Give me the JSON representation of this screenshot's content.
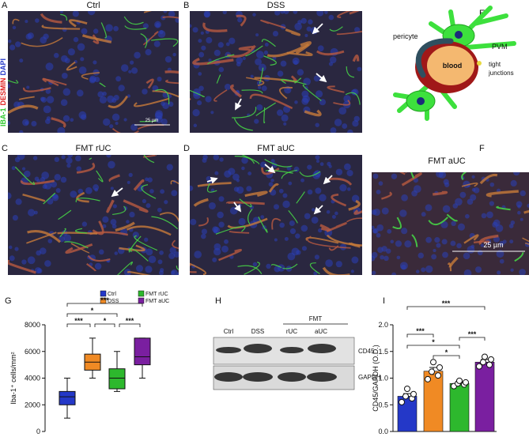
{
  "panels": {
    "a": {
      "letter": "A",
      "title": "Ctrl",
      "scale_bar": "25 µm"
    },
    "b": {
      "letter": "B",
      "title": "DSS"
    },
    "c": {
      "letter": "C",
      "title": "FMT rUC"
    },
    "d": {
      "letter": "D",
      "title": "FMT aUC"
    },
    "e": {
      "letter": "E",
      "labels": [
        "pericyte",
        "PVM",
        "blood",
        "tight",
        "junctions"
      ]
    },
    "f": {
      "letter": "F",
      "title": "FMT aUC",
      "scale_bar": "25 µm"
    },
    "stain": [
      "IBA-1",
      "DESMIN",
      "DAPI"
    ],
    "g": {
      "letter": "G"
    },
    "h": {
      "letter": "H",
      "group": "FMT",
      "lanes": [
        "Ctrl",
        "DSS",
        "rUC",
        "aUC"
      ],
      "rows": [
        "CD45",
        "GAPDH"
      ]
    },
    "i": {
      "letter": "I"
    }
  },
  "chart_data": [
    {
      "type": "box",
      "y_label": "Iba-1⁺ cells/mm²",
      "ylim": [
        0,
        8000
      ],
      "yticks": [
        0,
        2000,
        4000,
        6000,
        8000
      ],
      "series": [
        {
          "name": "Ctrl",
          "color": "#2438c8",
          "min": 1000,
          "q1": 2000,
          "median": 2600,
          "q3": 3000,
          "max": 4000
        },
        {
          "name": "DSS",
          "color": "#f08a24",
          "min": 4000,
          "q1": 4600,
          "median": 5200,
          "q3": 5800,
          "max": 7000
        },
        {
          "name": "FMT rUC",
          "color": "#2db82d",
          "min": 3000,
          "q1": 3200,
          "median": 4000,
          "q3": 4700,
          "max": 6000
        },
        {
          "name": "FMT aUC",
          "color": "#7a1fa0",
          "min": 4000,
          "q1": 5000,
          "median": 5600,
          "q3": 7000,
          "max": 7000
        }
      ],
      "annotations": [
        "***",
        "*",
        "***",
        "*",
        "***"
      ]
    },
    {
      "type": "bar",
      "y_label": "CD45/GAPDH (O.D.)",
      "categories": [
        null,
        null,
        null,
        null
      ],
      "colors": [
        "#2438c8",
        "#f08a24",
        "#2db82d",
        "#7a1fa0"
      ],
      "values": [
        0.66,
        1.13,
        0.9,
        1.3
      ],
      "errors": [
        0.05,
        0.07,
        0.03,
        0.05
      ],
      "points": [
        [
          0.55,
          0.62,
          0.66,
          0.7,
          0.8
        ],
        [
          0.98,
          1.05,
          1.12,
          1.2,
          1.3
        ],
        [
          0.85,
          0.88,
          0.9,
          0.92,
          0.95
        ],
        [
          1.22,
          1.25,
          1.3,
          1.35,
          1.4
        ]
      ],
      "ylim": [
        0,
        2
      ],
      "yticks": [
        {
          "value": 0,
          "label": "0.0"
        },
        0.5,
        {
          "value": 1,
          "label": "1.0"
        },
        1.5,
        {
          "value": 2,
          "label": "2.0"
        }
      ],
      "annotations": [
        "***",
        "***",
        "*",
        "*",
        "***"
      ]
    }
  ]
}
